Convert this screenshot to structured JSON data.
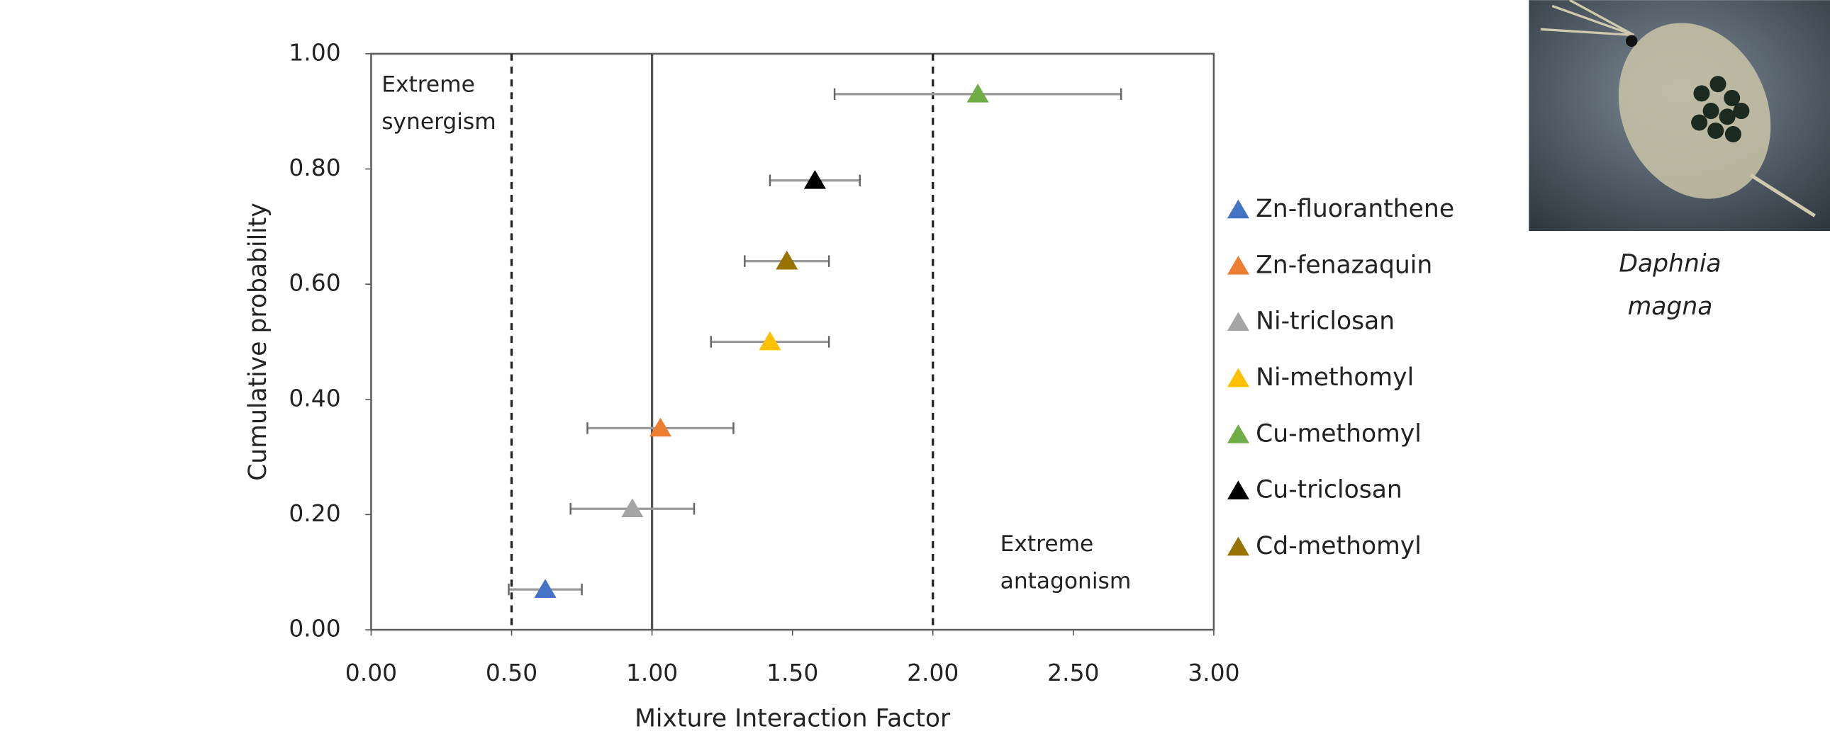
{
  "chart_data": {
    "type": "scatter",
    "x_label": "Mixture Interaction Factor",
    "y_label": "Cumulative probability",
    "xlim": [
      0,
      3
    ],
    "ylim": [
      0,
      1
    ],
    "xticks": [
      {
        "value": 0,
        "label": "0.00"
      },
      {
        "value": 0.5,
        "label": "0.50"
      },
      {
        "value": 1,
        "label": "1.00"
      },
      {
        "value": 1.5,
        "label": "1.50"
      },
      {
        "value": 2,
        "label": "2.00"
      },
      {
        "value": 2.5,
        "label": "2.50"
      },
      {
        "value": 3,
        "label": "3.00"
      }
    ],
    "yticks": [
      {
        "value": 0,
        "label": "0.00"
      },
      {
        "value": 0.2,
        "label": "0.20"
      },
      {
        "value": 0.4,
        "label": "0.40"
      },
      {
        "value": 0.6,
        "label": "0.60"
      },
      {
        "value": 0.8,
        "label": "0.80"
      },
      {
        "value": 1,
        "label": "1.00"
      }
    ],
    "reference_lines": [
      {
        "x": 0.5,
        "style": "dashed"
      },
      {
        "x": 1,
        "style": "solid"
      },
      {
        "x": 2,
        "style": "dashed"
      }
    ],
    "annotations": [
      {
        "lines": [
          "Extreme",
          "synergism"
        ]
      },
      {
        "lines": [
          "Extreme",
          "antagonism"
        ]
      }
    ],
    "legend": "right",
    "series": [
      {
        "name": "Zn-fluoranthene",
        "color": "#4472c4",
        "x": [
          0.62
        ],
        "values": [
          0.07
        ],
        "xerr_minus": [
          0.13
        ],
        "xerr_plus": [
          0.13
        ]
      },
      {
        "name": "Zn-fenazaquin",
        "color": "#ed7d31",
        "x": [
          1.03
        ],
        "values": [
          0.35
        ],
        "xerr_minus": [
          0.26
        ],
        "xerr_plus": [
          0.26
        ]
      },
      {
        "name": "Ni-triclosan",
        "color": "#a5a5a5",
        "x": [
          0.93
        ],
        "values": [
          0.21
        ],
        "xerr_minus": [
          0.22
        ],
        "xerr_plus": [
          0.22
        ]
      },
      {
        "name": "Ni-methomyl",
        "color": "#ffc000",
        "x": [
          1.42
        ],
        "values": [
          0.5
        ],
        "xerr_minus": [
          0.21
        ],
        "xerr_plus": [
          0.21
        ]
      },
      {
        "name": "Cu-methomyl",
        "color": "#70ad47",
        "x": [
          2.16
        ],
        "values": [
          0.93
        ],
        "xerr_minus": [
          0.51
        ],
        "xerr_plus": [
          0.51
        ]
      },
      {
        "name": "Cu-triclosan",
        "color": "#000000",
        "x": [
          1.58
        ],
        "values": [
          0.78
        ],
        "xerr_minus": [
          0.16
        ],
        "xerr_plus": [
          0.16
        ]
      },
      {
        "name": "Cd-methomyl",
        "color": "#997300",
        "x": [
          1.48
        ],
        "values": [
          0.64
        ],
        "xerr_minus": [
          0.15
        ],
        "xerr_plus": [
          0.15
        ]
      }
    ]
  },
  "image_caption": [
    "Daphnia",
    "magna"
  ]
}
